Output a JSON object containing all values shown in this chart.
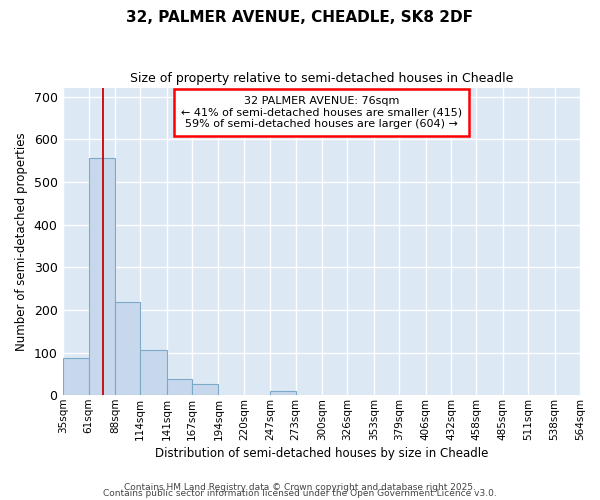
{
  "title": "32, PALMER AVENUE, CHEADLE, SK8 2DF",
  "subtitle": "Size of property relative to semi-detached houses in Cheadle",
  "xlabel": "Distribution of semi-detached houses by size in Cheadle",
  "ylabel": "Number of semi-detached properties",
  "bar_color": "#c8d8ec",
  "bar_edge_color": "#7aaac8",
  "background_color": "#dde8f5",
  "grid_color": "#ffffff",
  "bin_labels": [
    "35sqm",
    "61sqm",
    "88sqm",
    "114sqm",
    "141sqm",
    "167sqm",
    "194sqm",
    "220sqm",
    "247sqm",
    "273sqm",
    "300sqm",
    "326sqm",
    "353sqm",
    "379sqm",
    "406sqm",
    "432sqm",
    "458sqm",
    "485sqm",
    "511sqm",
    "538sqm",
    "564sqm"
  ],
  "bin_edges": [
    35,
    61,
    88,
    114,
    141,
    167,
    194,
    220,
    247,
    273,
    300,
    326,
    353,
    379,
    406,
    432,
    458,
    485,
    511,
    538,
    564
  ],
  "bar_heights": [
    88,
    555,
    218,
    107,
    38,
    25,
    0,
    0,
    10,
    0,
    0,
    0,
    0,
    0,
    0,
    0,
    0,
    0,
    0,
    0
  ],
  "red_line_x": 76,
  "annotation_title": "32 PALMER AVENUE: 76sqm",
  "annotation_line1": "← 41% of semi-detached houses are smaller (415)",
  "annotation_line2": "59% of semi-detached houses are larger (604) →",
  "ylim": [
    0,
    720
  ],
  "yticks": [
    0,
    100,
    200,
    300,
    400,
    500,
    600,
    700
  ],
  "footer1": "Contains HM Land Registry data © Crown copyright and database right 2025.",
  "footer2": "Contains public sector information licensed under the Open Government Licence v3.0."
}
